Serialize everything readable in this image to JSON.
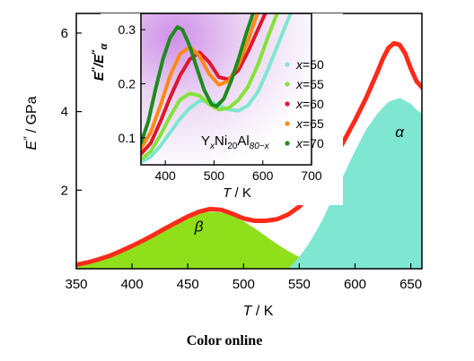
{
  "chart_data": [
    {
      "type": "line",
      "ylabel_main": "E",
      "ylabel_rest": " / GPa",
      "xlabel_main": "T",
      "xlabel_rest": " / K",
      "xlim": [
        350,
        660
      ],
      "ylim": [
        0,
        6.5
      ],
      "xticks": [
        350,
        400,
        450,
        500,
        550,
        600,
        650
      ],
      "yticks": [
        2,
        4,
        6
      ],
      "series": [
        {
          "kind": "line",
          "color": "#ff2a1a",
          "x": [
            350,
            360,
            370,
            380,
            390,
            400,
            410,
            420,
            430,
            440,
            450,
            460,
            470,
            480,
            490,
            500,
            510,
            520,
            530,
            540,
            550,
            560,
            570,
            580,
            590,
            600,
            610,
            620,
            625,
            630,
            635,
            640,
            645,
            650,
            655,
            660
          ],
          "y": [
            0.1,
            0.16,
            0.24,
            0.33,
            0.45,
            0.58,
            0.72,
            0.87,
            1.03,
            1.18,
            1.33,
            1.45,
            1.52,
            1.5,
            1.4,
            1.28,
            1.22,
            1.22,
            1.26,
            1.38,
            1.58,
            1.9,
            2.28,
            2.75,
            3.25,
            3.78,
            4.35,
            5.0,
            5.35,
            5.62,
            5.74,
            5.7,
            5.48,
            5.1,
            4.78,
            4.62
          ]
        }
      ],
      "peaks": [
        {
          "label": "β",
          "color": "#8fe01a",
          "x": [
            350,
            360,
            370,
            380,
            390,
            400,
            410,
            420,
            430,
            440,
            450,
            460,
            470,
            480,
            490,
            500,
            510,
            520,
            530,
            540,
            550,
            560,
            570,
            580,
            590,
            600
          ],
          "y": [
            0.08,
            0.14,
            0.22,
            0.32,
            0.44,
            0.58,
            0.73,
            0.88,
            1.03,
            1.17,
            1.3,
            1.4,
            1.45,
            1.43,
            1.35,
            1.21,
            1.03,
            0.83,
            0.63,
            0.45,
            0.3,
            0.18,
            0.1,
            0.05,
            0.02,
            0.0
          ]
        },
        {
          "label": "α",
          "color": "#7fe6d2",
          "x": [
            540,
            550,
            560,
            570,
            580,
            590,
            600,
            610,
            620,
            630,
            640,
            650,
            655,
            660
          ],
          "y": [
            0.0,
            0.3,
            0.7,
            1.2,
            1.8,
            2.4,
            3.0,
            3.55,
            3.95,
            4.25,
            4.35,
            4.2,
            4.05,
            3.95
          ]
        }
      ]
    },
    {
      "type": "line",
      "ylabel_main": "E",
      "ylabel_mid": "/E",
      "ylabel_sub": "α",
      "xlabel_main": "T",
      "xlabel_rest": " / K",
      "xlim": [
        350,
        700
      ],
      "ylim": [
        0.05,
        0.33
      ],
      "xticks": [
        400,
        500,
        600,
        700
      ],
      "yticks": [
        0.1,
        0.2,
        0.3
      ],
      "annotation": {
        "y": "Y",
        "ys": "x",
        "ni": "Ni",
        "nis": "20",
        "al": "Al",
        "als": "80−x"
      },
      "series": [
        {
          "name": "x=50",
          "color": "#7fe6d2",
          "x": [
            350,
            370,
            390,
            410,
            430,
            450,
            470,
            490,
            510,
            530,
            550,
            570,
            590,
            610,
            630,
            650,
            665
          ],
          "y": [
            0.055,
            0.065,
            0.085,
            0.11,
            0.135,
            0.155,
            0.168,
            0.168,
            0.16,
            0.152,
            0.15,
            0.16,
            0.185,
            0.225,
            0.27,
            0.315,
            0.345
          ]
        },
        {
          "name": "x=55",
          "color": "#84e23a",
          "x": [
            350,
            370,
            390,
            410,
            430,
            450,
            470,
            490,
            510,
            530,
            550,
            570,
            590,
            610,
            625,
            640
          ],
          "y": [
            0.06,
            0.075,
            0.105,
            0.14,
            0.17,
            0.182,
            0.178,
            0.162,
            0.152,
            0.155,
            0.17,
            0.195,
            0.235,
            0.285,
            0.32,
            0.35
          ]
        },
        {
          "name": "x=60",
          "color": "#e0162e",
          "x": [
            350,
            370,
            390,
            410,
            430,
            450,
            470,
            490,
            510,
            530,
            550,
            570,
            590,
            605,
            620
          ],
          "y": [
            0.07,
            0.09,
            0.13,
            0.175,
            0.215,
            0.245,
            0.258,
            0.24,
            0.212,
            0.208,
            0.225,
            0.26,
            0.3,
            0.33,
            0.355
          ]
        },
        {
          "name": "x=65",
          "color": "#ff8a14",
          "x": [
            350,
            370,
            390,
            410,
            430,
            450,
            470,
            490,
            510,
            530,
            550,
            570,
            585,
            600
          ],
          "y": [
            0.08,
            0.11,
            0.16,
            0.215,
            0.255,
            0.268,
            0.252,
            0.218,
            0.198,
            0.205,
            0.235,
            0.28,
            0.32,
            0.355
          ]
        },
        {
          "name": "x=70",
          "color": "#1e8a1e",
          "x": [
            350,
            365,
            380,
            395,
            410,
            425,
            435,
            450,
            465,
            480,
            495,
            505,
            520,
            535,
            550,
            565,
            580,
            592
          ],
          "y": [
            0.09,
            0.13,
            0.19,
            0.245,
            0.285,
            0.305,
            0.3,
            0.27,
            0.228,
            0.188,
            0.162,
            0.158,
            0.172,
            0.205,
            0.245,
            0.29,
            0.33,
            0.355
          ]
        }
      ]
    }
  ],
  "caption": "Color online"
}
